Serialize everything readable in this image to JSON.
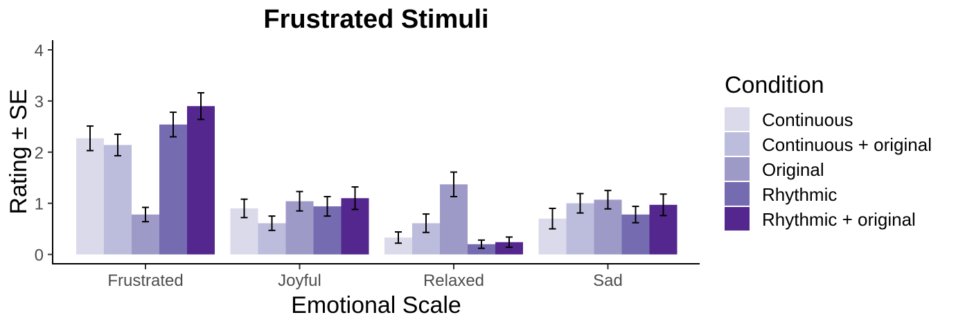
{
  "chart_data": {
    "type": "bar",
    "title": "Frustrated Stimuli",
    "xlabel": "Emotional Scale",
    "ylabel": "Rating ± SE",
    "ylim": [
      0,
      4
    ],
    "yticks": [
      "0",
      "1",
      "2",
      "3",
      "4"
    ],
    "categories": [
      "Frustrated",
      "Joyful",
      "Relaxed",
      "Sad"
    ],
    "legend_title": "Condition",
    "legend_position": "right",
    "grid": false,
    "series": [
      {
        "name": "Continuous",
        "color": "#dadaeb",
        "values": [
          2.27,
          0.9,
          0.33,
          0.7
        ],
        "se": [
          0.24,
          0.18,
          0.11,
          0.2
        ]
      },
      {
        "name": "Continuous + original",
        "color": "#bcbddc",
        "values": [
          2.14,
          0.61,
          0.61,
          1.0
        ],
        "se": [
          0.21,
          0.14,
          0.18,
          0.19
        ]
      },
      {
        "name": "Original",
        "color": "#9e9ac8",
        "values": [
          0.78,
          1.04,
          1.37,
          1.07
        ],
        "se": [
          0.14,
          0.19,
          0.24,
          0.18
        ]
      },
      {
        "name": "Rhythmic",
        "color": "#756bb1",
        "values": [
          2.54,
          0.94,
          0.2,
          0.78
        ],
        "se": [
          0.24,
          0.19,
          0.08,
          0.16
        ]
      },
      {
        "name": "Rhythmic + original",
        "color": "#54278f",
        "values": [
          2.9,
          1.1,
          0.24,
          0.97
        ],
        "se": [
          0.26,
          0.22,
          0.1,
          0.21
        ]
      }
    ]
  }
}
